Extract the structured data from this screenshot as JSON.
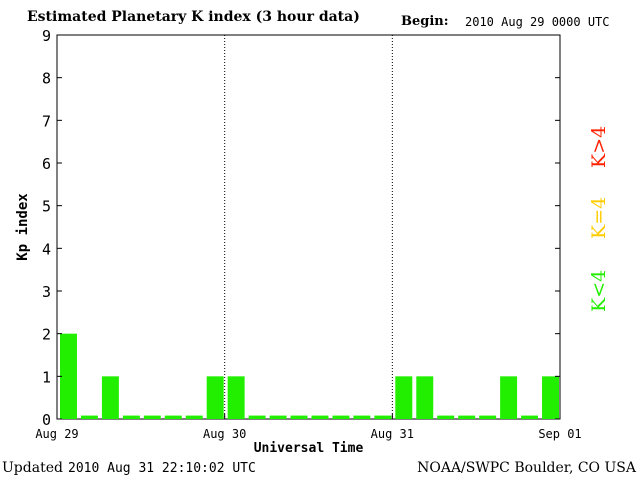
{
  "header": {
    "title": "Estimated Planetary K index (3 hour data)",
    "begin_label": "Begin:",
    "begin_value": "2010 Aug 29 0000 UTC"
  },
  "footer": {
    "updated_label": "Updated",
    "updated_value": "2010 Aug 31 22:10:02 UTC",
    "source": "NOAA/SWPC Boulder, CO USA"
  },
  "legend": {
    "high": {
      "label": "K>4",
      "color": "#ff2200"
    },
    "equal": {
      "label": "K=4",
      "color": "#ffcc00"
    },
    "low": {
      "label": "K<4",
      "color": "#22ee00"
    }
  },
  "chart_data": {
    "type": "bar",
    "title": "Estimated Planetary K index (3 hour data)",
    "xlabel": "Universal Time",
    "ylabel": "Kp index",
    "ylim": [
      0,
      9
    ],
    "yticks": [
      0,
      1,
      2,
      3,
      4,
      5,
      6,
      7,
      8,
      9
    ],
    "xlim": [
      "2010-08-29 00:00",
      "2010-09-01 00:00"
    ],
    "xtick_labels": [
      "Aug 29",
      "Aug 30",
      "Aug 31",
      "Sep 01"
    ],
    "day_separators": [
      "Aug 30",
      "Aug 31"
    ],
    "interval_hours": 3,
    "bar_color": "#22ee00",
    "series": [
      {
        "values": [
          2,
          0,
          1,
          0,
          0,
          0,
          0,
          1,
          1,
          0,
          0,
          0,
          0,
          0,
          0,
          0,
          1,
          1,
          0,
          0,
          0,
          1,
          0,
          1
        ]
      }
    ]
  }
}
